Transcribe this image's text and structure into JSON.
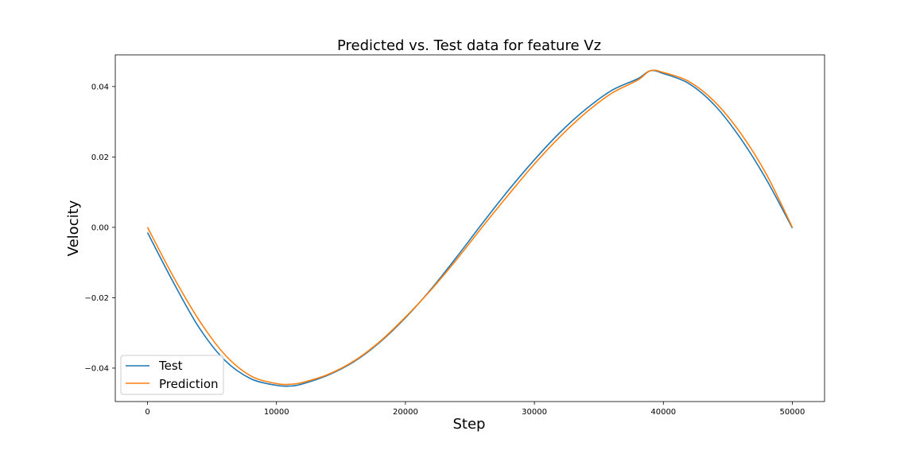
{
  "chart_data": {
    "type": "line",
    "title": "Predicted vs. Test data for feature Vz",
    "xlabel": "Step",
    "ylabel": "Velocity",
    "xlim": [
      -2500,
      52500
    ],
    "ylim": [
      -0.0495,
      0.049
    ],
    "xticks": [
      0,
      10000,
      20000,
      30000,
      40000,
      50000
    ],
    "xtick_labels": [
      "0",
      "10000",
      "20000",
      "30000",
      "40000",
      "50000"
    ],
    "yticks": [
      -0.04,
      -0.02,
      0.0,
      0.02,
      0.04
    ],
    "ytick_labels": [
      "−0.04",
      "−0.02",
      "0.00",
      "0.02",
      "0.04"
    ],
    "grid": false,
    "legend": {
      "position": "lower-left"
    },
    "series": [
      {
        "name": "Test",
        "color": "#1f77b4",
        "x": [
          0,
          2000,
          4000,
          6000,
          8000,
          10000,
          11000,
          12000,
          14000,
          16000,
          18000,
          20000,
          22000,
          24000,
          26000,
          28000,
          30000,
          32000,
          34000,
          36000,
          38000,
          39000,
          40000,
          42000,
          44000,
          46000,
          48000,
          50000
        ],
        "y": [
          -0.0015,
          -0.0156,
          -0.0285,
          -0.0378,
          -0.043,
          -0.0449,
          -0.0451,
          -0.0445,
          -0.042,
          -0.0382,
          -0.0327,
          -0.0257,
          -0.0175,
          -0.0083,
          0.0013,
          0.0106,
          0.0192,
          0.027,
          0.0336,
          0.0389,
          0.0422,
          0.0445,
          0.0437,
          0.0408,
          0.0346,
          0.0252,
          0.0135,
          -0.0002
        ]
      },
      {
        "name": "Prediction",
        "color": "#ff7f0e",
        "x": [
          0,
          2000,
          4000,
          6000,
          8000,
          10000,
          11000,
          12000,
          14000,
          16000,
          18000,
          20000,
          22000,
          24000,
          26000,
          28000,
          30000,
          32000,
          34000,
          36000,
          38000,
          39000,
          40000,
          42000,
          44000,
          46000,
          48000,
          50000
        ],
        "y": [
          0.0,
          -0.014,
          -0.0264,
          -0.0362,
          -0.0422,
          -0.0444,
          -0.0446,
          -0.0441,
          -0.0418,
          -0.038,
          -0.0325,
          -0.0255,
          -0.0177,
          -0.009,
          0.0003,
          0.0093,
          0.018,
          0.0258,
          0.0326,
          0.0381,
          0.0418,
          0.0445,
          0.044,
          0.0414,
          0.0356,
          0.0267,
          0.015,
          0.0
        ]
      }
    ]
  }
}
